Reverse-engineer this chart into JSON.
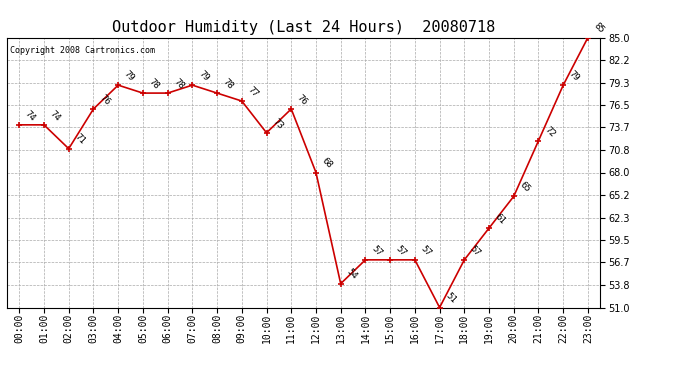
{
  "title": "Outdoor Humidity (Last 24 Hours)  20080718",
  "copyright": "Copyright 2008 Cartronics.com",
  "hours": [
    "00:00",
    "01:00",
    "02:00",
    "03:00",
    "04:00",
    "05:00",
    "06:00",
    "07:00",
    "08:00",
    "09:00",
    "10:00",
    "11:00",
    "12:00",
    "13:00",
    "14:00",
    "15:00",
    "16:00",
    "17:00",
    "18:00",
    "19:00",
    "20:00",
    "21:00",
    "22:00",
    "23:00"
  ],
  "values": [
    74,
    74,
    71,
    76,
    79,
    78,
    78,
    79,
    78,
    77,
    73,
    76,
    68,
    54,
    57,
    57,
    57,
    51,
    57,
    61,
    65,
    72,
    79,
    85
  ],
  "ylim": [
    51.0,
    85.0
  ],
  "yticks": [
    51.0,
    53.8,
    56.7,
    59.5,
    62.3,
    65.2,
    68.0,
    70.8,
    73.7,
    76.5,
    79.3,
    82.2,
    85.0
  ],
  "line_color": "#cc0000",
  "marker_color": "#cc0000",
  "bg_color": "#ffffff",
  "plot_bg_color": "#ffffff",
  "grid_color": "#aaaaaa",
  "title_fontsize": 11,
  "label_fontsize": 6.5,
  "tick_fontsize": 7,
  "copyright_fontsize": 6
}
